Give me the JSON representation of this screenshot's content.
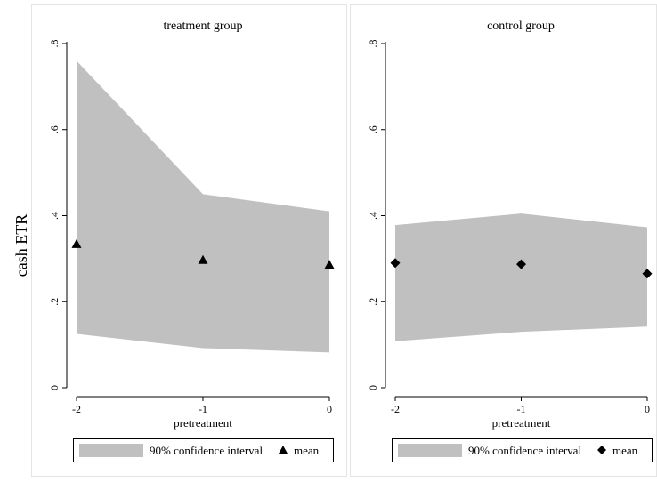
{
  "chart_data": {
    "type": "area",
    "ylabel": "cash ETR",
    "xlabel": "pretreatment",
    "x": [
      -2,
      -1,
      0
    ],
    "x_ticks": [
      "-2",
      "-1",
      "0"
    ],
    "y_ticks": [
      "0",
      ".2",
      ".4",
      ".6",
      ".8"
    ],
    "ylim": [
      0,
      0.8
    ],
    "xlim": [
      -2,
      0
    ],
    "grid": false,
    "legend_position": "bottom",
    "panels": [
      {
        "title": "treatment group",
        "ci_upper": [
          0.76,
          0.45,
          0.41
        ],
        "ci_lower": [
          0.125,
          0.092,
          0.082
        ],
        "mean": [
          0.333,
          0.296,
          0.285
        ],
        "marker": "triangle",
        "legend": {
          "ci_label": "90% confidence interval",
          "mean_label": "mean"
        }
      },
      {
        "title": "control group",
        "ci_upper": [
          0.378,
          0.405,
          0.373
        ],
        "ci_lower": [
          0.108,
          0.13,
          0.142
        ],
        "mean": [
          0.29,
          0.287,
          0.265
        ],
        "marker": "diamond",
        "legend": {
          "ci_label": "90% confidence interval",
          "mean_label": "mean"
        }
      }
    ],
    "colors": {
      "ci_fill": "#c0c0c0",
      "marker": "#000000",
      "frame": "#e4e4e4"
    }
  }
}
